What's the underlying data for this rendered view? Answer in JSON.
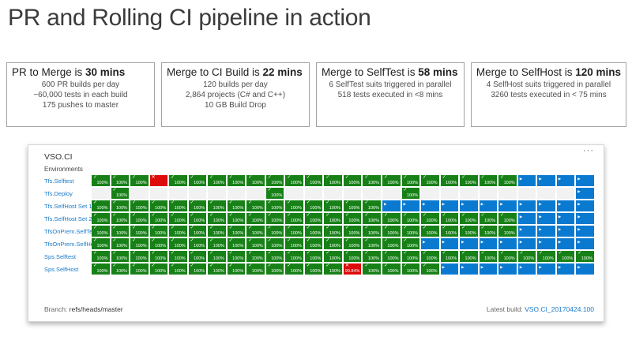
{
  "page": {
    "title": "PR and Rolling CI pipeline in action"
  },
  "icons": {
    "more": "···",
    "check": "✓",
    "fail": "✕",
    "play": "▶"
  },
  "stat_boxes": [
    {
      "title_prefix": "PR to Merge is ",
      "title_bold": "30 mins",
      "lines": [
        "600 PR builds per day",
        "~60,000 tests in each build",
        "175 pushes to master"
      ]
    },
    {
      "title_prefix": "Merge to CI Build is ",
      "title_bold": "22 mins",
      "lines": [
        "120 builds per day",
        "2,864 projects (C# and C++)",
        "10 GB Build Drop"
      ]
    },
    {
      "title_prefix": "Merge to SelfTest is ",
      "title_bold": "58 mins",
      "lines": [
        "6 SelfTest suits triggered in parallel",
        "518 tests executed in <8 mins"
      ]
    },
    {
      "title_prefix": "Merge to SelfHost is ",
      "title_bold": "120 mins",
      "lines": [
        "4 SelfHost suits triggered in parallel",
        "3260 tests executed in < 75 mins"
      ]
    }
  ],
  "pipeline_panel": {
    "title": "VSO.CI",
    "environments_label": "Environments",
    "columns": 26,
    "colors": {
      "success": "#178117",
      "failed": "#dd0b0b",
      "queued": "#0a7ad1",
      "empty": "#f2f2f2"
    },
    "rows": [
      {
        "label": "Tfs.Selftest",
        "cells": [
          "s",
          "s",
          "s",
          "x",
          "s",
          "s",
          "s",
          "s",
          "s",
          "s",
          "s",
          "s",
          "s",
          "s",
          "s",
          "s",
          "s",
          "s",
          "s",
          "s",
          "s",
          "s",
          "q",
          "q",
          "q",
          "q"
        ]
      },
      {
        "label": "Tfs.Deploy",
        "cells": [
          "e",
          "s",
          "e",
          "e",
          "e",
          "e",
          "e",
          "e",
          "e",
          "s",
          "e",
          "e",
          "e",
          "e",
          "e",
          "e",
          "s",
          "e",
          "e",
          "e",
          "e",
          "e",
          "e",
          "e",
          "e",
          "q"
        ]
      },
      {
        "label": "Tfs.SelfHost Set 1",
        "cells": [
          "s",
          "s",
          "s",
          "s",
          "s",
          "s",
          "s",
          "s",
          "s",
          "s",
          "s",
          "s",
          "s",
          "s",
          "s",
          "q",
          "q",
          "q",
          "q",
          "q",
          "q",
          "q",
          "q",
          "q",
          "q",
          "q"
        ]
      },
      {
        "label": "Tfs.SelfHost Set 2",
        "cells": [
          "s",
          "s",
          "s",
          "s",
          "s",
          "s",
          "s",
          "s",
          "s",
          "s",
          "s",
          "s",
          "s",
          "s",
          "s",
          "s",
          "s",
          "s",
          "s",
          "s",
          "s",
          "s",
          "q",
          "q",
          "q",
          "q"
        ]
      },
      {
        "label": "TfsOnPrem.SelfTest",
        "cells": [
          "s",
          "s",
          "s",
          "s",
          "s",
          "s",
          "s",
          "s",
          "s",
          "s",
          "s",
          "s",
          "s",
          "s",
          "s",
          "s",
          "s",
          "s",
          "s",
          "s",
          "s",
          "s",
          "q",
          "q",
          "q",
          "q"
        ]
      },
      {
        "label": "TfsOnPrem.SelfHost",
        "cells": [
          "s",
          "s",
          "s",
          "s",
          "s",
          "s",
          "s",
          "s",
          "s",
          "s",
          "s",
          "s",
          "s",
          "s",
          "s",
          "s",
          "s",
          "q",
          "q",
          "q",
          "q",
          "q",
          "q",
          "q",
          "q",
          "q"
        ]
      },
      {
        "label": "Sps.Selftest",
        "cells": [
          "s",
          "s",
          "s",
          "s",
          "s",
          "s",
          "s",
          "s",
          "s",
          "s",
          "s",
          "s",
          "s",
          "s",
          "s",
          "s",
          "s",
          "s",
          "s",
          "s",
          "s",
          "s",
          "s",
          "s",
          "s",
          "s"
        ]
      },
      {
        "label": "Sps.SelfHost",
        "cells": [
          "s",
          "s",
          "s",
          "s",
          "s",
          "s",
          "s",
          "s",
          "s",
          "s",
          "s",
          "s",
          "s",
          "x:99.84%",
          "s",
          "s",
          "s",
          "s",
          "q",
          "q",
          "q",
          "q",
          "q",
          "q",
          "q",
          "q"
        ]
      }
    ],
    "footer": {
      "branch_label": "Branch:",
      "branch_value": "refs/heads/master",
      "latest_build_label": "Latest build:",
      "latest_build_value": "VSO.CI_20170424.100"
    }
  }
}
